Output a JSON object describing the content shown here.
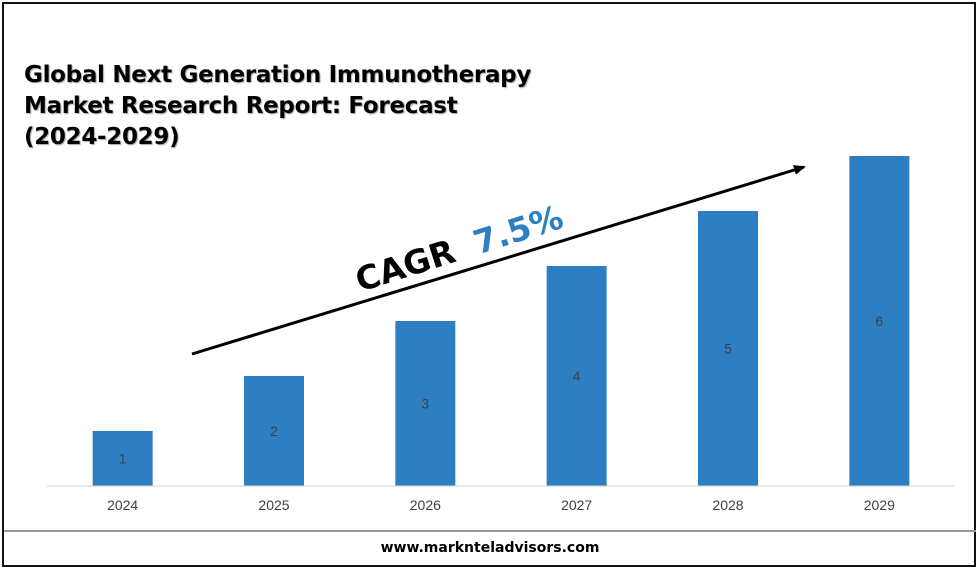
{
  "title": "Global Next Generation Immunotherapy Market Research Report: Forecast (2024-2029)",
  "cagr": {
    "label": "CAGR",
    "value": "7.5%"
  },
  "colors": {
    "bar": "#2e7fc2",
    "cagr_value": "#2e7fc2",
    "arrow": "#000000"
  },
  "footer": {
    "url": "www.marknteladvisors.com"
  },
  "chart_data": {
    "type": "bar",
    "categories": [
      "2024",
      "2025",
      "2026",
      "2027",
      "2028",
      "2029"
    ],
    "values": [
      1,
      2,
      3,
      4,
      5,
      6
    ],
    "data_labels": [
      "1",
      "2",
      "3",
      "4",
      "5",
      "6"
    ],
    "ylim": [
      0,
      6
    ],
    "grid": false,
    "legend": "none",
    "annotation": "CAGR 7.5%"
  }
}
